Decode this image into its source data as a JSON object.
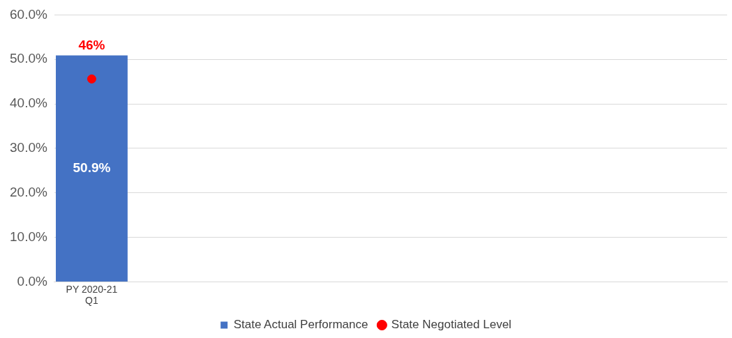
{
  "chart_data": {
    "type": "bar",
    "categories": [
      "PY 2020-21 Q1",
      null,
      null,
      null,
      null,
      null,
      null,
      null,
      null
    ],
    "series": [
      {
        "name": "State Actual Performance",
        "color": "#4472c4",
        "values": [
          50.9,
          null,
          null,
          null,
          null,
          null,
          null,
          null,
          null
        ],
        "value_labels": [
          "50.9%",
          null,
          null,
          null,
          null,
          null,
          null,
          null,
          null
        ]
      },
      {
        "name": "State Negotiated Level",
        "type": "scatter",
        "color": "#ff0000",
        "marker": "circle",
        "values": [
          45.6,
          null,
          null,
          null,
          null,
          null,
          null,
          null,
          null
        ],
        "value_labels": [
          "46%",
          null,
          null,
          null,
          null,
          null,
          null,
          null,
          null
        ]
      }
    ],
    "ylim": [
      0,
      60
    ],
    "yticks": [
      {
        "value": 0,
        "label": "0.0%"
      },
      {
        "value": 10,
        "label": "10.0%"
      },
      {
        "value": 20,
        "label": "20.0%"
      },
      {
        "value": 30,
        "label": "30.0%"
      },
      {
        "value": 40,
        "label": "40.0%"
      },
      {
        "value": 50,
        "label": "50.0%"
      },
      {
        "value": 60,
        "label": "60.0%"
      }
    ],
    "grid": "y",
    "legend": "bottom"
  }
}
